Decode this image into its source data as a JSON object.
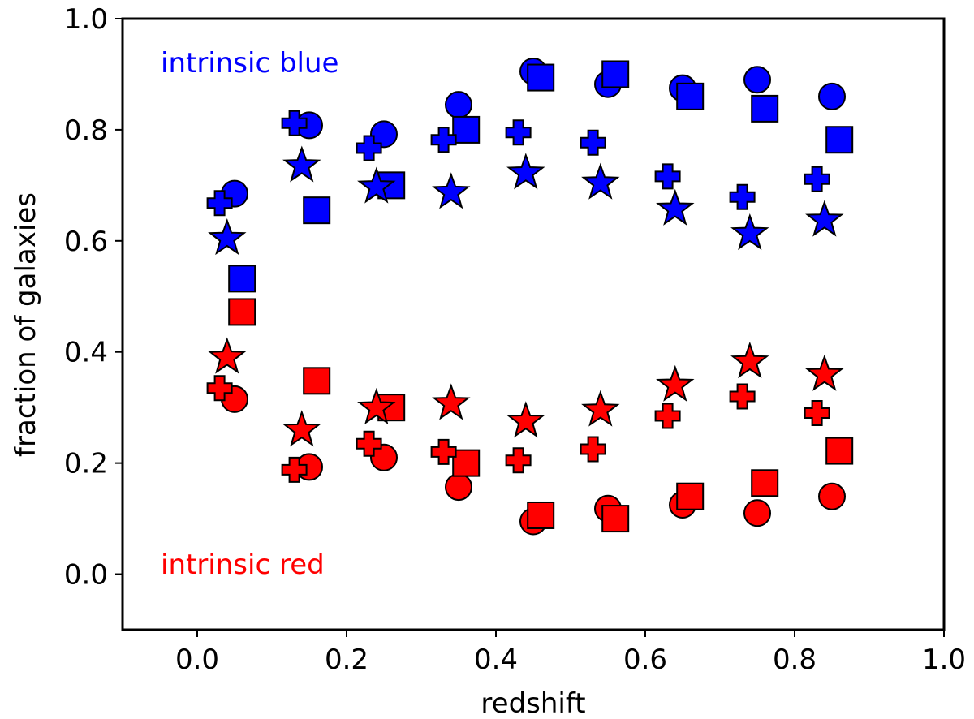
{
  "chart_data": {
    "type": "scatter",
    "title": "",
    "xlabel": "redshift",
    "ylabel": "fraction of galaxies",
    "xlim": [
      -0.1,
      1.0
    ],
    "ylim": [
      -0.1,
      1.0
    ],
    "xticks": [
      "0.0",
      "0.2",
      "0.4",
      "0.6",
      "0.8",
      "1.0"
    ],
    "yticks": [
      "0.0",
      "0.2",
      "0.4",
      "0.6",
      "0.8",
      "1.0"
    ],
    "grid": false,
    "annotations": [
      {
        "text": "intrinsic blue",
        "color": "#0000ff"
      },
      {
        "text": "intrinsic red",
        "color": "#ff0000"
      }
    ],
    "series": [
      {
        "name": "intrinsic blue - circle",
        "color": "#0000ff",
        "marker": "circle",
        "x": [
          0.05,
          0.15,
          0.25,
          0.35,
          0.45,
          0.55,
          0.65,
          0.75,
          0.85
        ],
        "y": [
          0.685,
          0.808,
          0.792,
          0.845,
          0.905,
          0.882,
          0.875,
          0.89,
          0.86
        ]
      },
      {
        "name": "intrinsic blue - square",
        "color": "#0000ff",
        "marker": "square",
        "x": [
          0.06,
          0.16,
          0.26,
          0.36,
          0.46,
          0.56,
          0.66,
          0.76,
          0.86
        ],
        "y": [
          0.532,
          0.655,
          0.7,
          0.8,
          0.894,
          0.9,
          0.86,
          0.838,
          0.782
        ]
      },
      {
        "name": "intrinsic blue - plus",
        "color": "#0000ff",
        "marker": "plus",
        "x": [
          0.03,
          0.13,
          0.23,
          0.33,
          0.43,
          0.53,
          0.63,
          0.73,
          0.83
        ],
        "y": [
          0.668,
          0.812,
          0.767,
          0.782,
          0.795,
          0.777,
          0.716,
          0.679,
          0.711
        ]
      },
      {
        "name": "intrinsic blue - star",
        "color": "#0000ff",
        "marker": "star",
        "x": [
          0.04,
          0.14,
          0.24,
          0.34,
          0.44,
          0.54,
          0.64,
          0.74,
          0.84
        ],
        "y": [
          0.607,
          0.738,
          0.7,
          0.69,
          0.725,
          0.707,
          0.66,
          0.616,
          0.64
        ]
      },
      {
        "name": "intrinsic red - circle",
        "color": "#ff0000",
        "marker": "circle",
        "x": [
          0.05,
          0.15,
          0.25,
          0.35,
          0.45,
          0.55,
          0.65,
          0.75,
          0.85
        ],
        "y": [
          0.315,
          0.193,
          0.21,
          0.157,
          0.095,
          0.118,
          0.125,
          0.11,
          0.14
        ]
      },
      {
        "name": "intrinsic red - square",
        "color": "#ff0000",
        "marker": "square",
        "x": [
          0.06,
          0.16,
          0.26,
          0.36,
          0.46,
          0.56,
          0.66,
          0.76,
          0.86
        ],
        "y": [
          0.472,
          0.348,
          0.3,
          0.2,
          0.106,
          0.1,
          0.14,
          0.164,
          0.222
        ]
      },
      {
        "name": "intrinsic red - plus",
        "color": "#ff0000",
        "marker": "plus",
        "x": [
          0.03,
          0.13,
          0.23,
          0.33,
          0.43,
          0.53,
          0.63,
          0.73,
          0.83
        ],
        "y": [
          0.335,
          0.188,
          0.235,
          0.22,
          0.205,
          0.225,
          0.285,
          0.32,
          0.29
        ]
      },
      {
        "name": "intrinsic red - star",
        "color": "#ff0000",
        "marker": "star",
        "x": [
          0.04,
          0.14,
          0.24,
          0.34,
          0.44,
          0.54,
          0.64,
          0.74,
          0.84
        ],
        "y": [
          0.393,
          0.262,
          0.302,
          0.31,
          0.278,
          0.298,
          0.343,
          0.385,
          0.362
        ]
      }
    ]
  }
}
